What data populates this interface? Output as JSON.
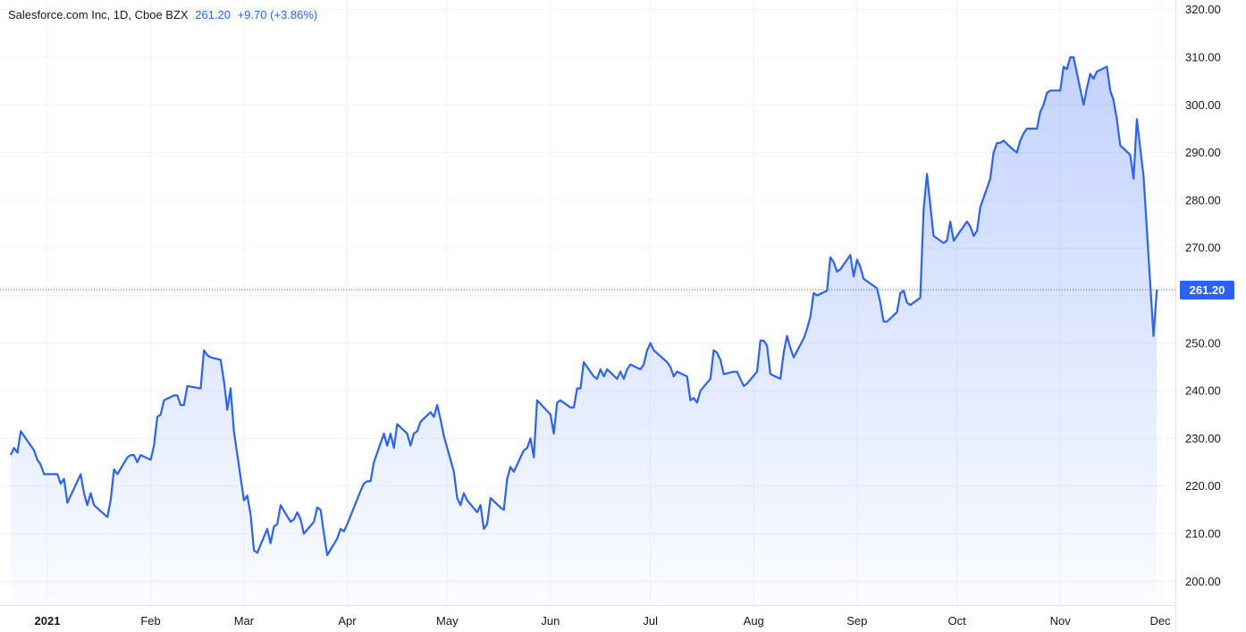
{
  "legend": {
    "symbol": "Salesforce.com Inc, 1D, Cboe BZX",
    "last": "261.20",
    "change": "+9.70 (+3.86%)"
  },
  "price_tag": "261.20",
  "colors": {
    "line": "#2962ff",
    "grid": "#f0f3fa",
    "text": "#131722"
  },
  "chart_data": {
    "type": "area",
    "ylim": [
      195,
      322
    ],
    "y_ticks": [
      "320.00",
      "310.00",
      "300.00",
      "290.00",
      "280.00",
      "270.00",
      "260.00",
      "250.00",
      "240.00",
      "230.00",
      "220.00",
      "210.00",
      "200.00"
    ],
    "x_tick_labels": [
      {
        "label": "2021",
        "date": "2021-01-01",
        "bold": true
      },
      {
        "label": "Feb",
        "date": "2021-02-01"
      },
      {
        "label": "Mar",
        "date": "2021-03-01"
      },
      {
        "label": "Apr",
        "date": "2021-04-01"
      },
      {
        "label": "May",
        "date": "2021-05-01"
      },
      {
        "label": "Jun",
        "date": "2021-06-01"
      },
      {
        "label": "Jul",
        "date": "2021-07-01"
      },
      {
        "label": "Aug",
        "date": "2021-08-01"
      },
      {
        "label": "Sep",
        "date": "2021-09-01"
      },
      {
        "label": "Oct",
        "date": "2021-10-01"
      },
      {
        "label": "Nov",
        "date": "2021-11-01"
      },
      {
        "label": "Dec",
        "date": "2021-12-01"
      }
    ],
    "last_price": 261.2,
    "series": [
      {
        "points": [
          [
            "2020-12-21",
            226.5
          ],
          [
            "2020-12-22",
            228
          ],
          [
            "2020-12-23",
            227
          ],
          [
            "2020-12-24",
            231.5
          ],
          [
            "2020-12-28",
            227.5
          ],
          [
            "2020-12-29",
            225.5
          ],
          [
            "2020-12-30",
            224.5
          ],
          [
            "2020-12-31",
            222.5
          ],
          [
            "2021-01-04",
            222.5
          ],
          [
            "2021-01-05",
            220.5
          ],
          [
            "2021-01-06",
            221.5
          ],
          [
            "2021-01-07",
            216.5
          ],
          [
            "2021-01-08",
            218
          ],
          [
            "2021-01-11",
            222.5
          ],
          [
            "2021-01-12",
            218.5
          ],
          [
            "2021-01-13",
            216
          ],
          [
            "2021-01-14",
            218.5
          ],
          [
            "2021-01-15",
            216
          ],
          [
            "2021-01-19",
            213.5
          ],
          [
            "2021-01-20",
            217
          ],
          [
            "2021-01-21",
            223.5
          ],
          [
            "2021-01-22",
            222.5
          ],
          [
            "2021-01-25",
            226
          ],
          [
            "2021-01-26",
            226.5
          ],
          [
            "2021-01-27",
            226.5
          ],
          [
            "2021-01-28",
            225
          ],
          [
            "2021-01-29",
            226.5
          ],
          [
            "2021-02-01",
            225.5
          ],
          [
            "2021-02-02",
            228.5
          ],
          [
            "2021-02-03",
            234.5
          ],
          [
            "2021-02-04",
            235
          ],
          [
            "2021-02-05",
            238
          ],
          [
            "2021-02-08",
            239
          ],
          [
            "2021-02-09",
            239
          ],
          [
            "2021-02-10",
            237
          ],
          [
            "2021-02-11",
            237
          ],
          [
            "2021-02-12",
            241
          ],
          [
            "2021-02-16",
            240.5
          ],
          [
            "2021-02-17",
            248.5
          ],
          [
            "2021-02-18",
            247.5
          ],
          [
            "2021-02-19",
            247
          ],
          [
            "2021-02-22",
            246.5
          ],
          [
            "2021-02-23",
            242
          ],
          [
            "2021-02-24",
            236
          ],
          [
            "2021-02-25",
            240.5
          ],
          [
            "2021-02-26",
            231.5
          ],
          [
            "2021-03-01",
            217
          ],
          [
            "2021-03-02",
            218
          ],
          [
            "2021-03-03",
            214
          ],
          [
            "2021-03-04",
            206.5
          ],
          [
            "2021-03-05",
            206
          ],
          [
            "2021-03-08",
            211
          ],
          [
            "2021-03-09",
            208
          ],
          [
            "2021-03-10",
            211.5
          ],
          [
            "2021-03-11",
            212
          ],
          [
            "2021-03-12",
            216
          ],
          [
            "2021-03-15",
            212.5
          ],
          [
            "2021-03-16",
            213
          ],
          [
            "2021-03-17",
            214.5
          ],
          [
            "2021-03-18",
            213
          ],
          [
            "2021-03-19",
            210
          ],
          [
            "2021-03-22",
            212.5
          ],
          [
            "2021-03-23",
            215.5
          ],
          [
            "2021-03-24",
            215
          ],
          [
            "2021-03-25",
            210
          ],
          [
            "2021-03-26",
            205.5
          ],
          [
            "2021-03-29",
            209
          ],
          [
            "2021-03-30",
            211
          ],
          [
            "2021-03-31",
            210.5
          ],
          [
            "2021-04-01",
            212
          ],
          [
            "2021-04-05",
            219
          ],
          [
            "2021-04-06",
            220.5
          ],
          [
            "2021-04-07",
            221
          ],
          [
            "2021-04-08",
            221
          ],
          [
            "2021-04-09",
            225
          ],
          [
            "2021-04-12",
            231
          ],
          [
            "2021-04-13",
            228.5
          ],
          [
            "2021-04-14",
            231
          ],
          [
            "2021-04-15",
            228
          ],
          [
            "2021-04-16",
            233
          ],
          [
            "2021-04-19",
            231
          ],
          [
            "2021-04-20",
            228.5
          ],
          [
            "2021-04-21",
            231
          ],
          [
            "2021-04-22",
            231.5
          ],
          [
            "2021-04-23",
            233.5
          ],
          [
            "2021-04-26",
            235.5
          ],
          [
            "2021-04-27",
            234.5
          ],
          [
            "2021-04-28",
            237
          ],
          [
            "2021-04-29",
            234
          ],
          [
            "2021-04-30",
            230.5
          ],
          [
            "2021-05-03",
            223
          ],
          [
            "2021-05-04",
            217.5
          ],
          [
            "2021-05-05",
            216
          ],
          [
            "2021-05-06",
            218.5
          ],
          [
            "2021-05-07",
            217
          ],
          [
            "2021-05-10",
            214.5
          ],
          [
            "2021-05-11",
            216
          ],
          [
            "2021-05-12",
            211
          ],
          [
            "2021-05-13",
            212
          ],
          [
            "2021-05-14",
            217.5
          ],
          [
            "2021-05-17",
            215.5
          ],
          [
            "2021-05-18",
            215
          ],
          [
            "2021-05-19",
            221.5
          ],
          [
            "2021-05-20",
            224
          ],
          [
            "2021-05-21",
            223
          ],
          [
            "2021-05-24",
            227.5
          ],
          [
            "2021-05-25",
            228
          ],
          [
            "2021-05-26",
            230
          ],
          [
            "2021-05-27",
            226
          ],
          [
            "2021-05-28",
            238
          ],
          [
            "2021-06-01",
            235
          ],
          [
            "2021-06-02",
            231
          ],
          [
            "2021-06-03",
            237.5
          ],
          [
            "2021-06-04",
            238
          ],
          [
            "2021-06-07",
            236.5
          ],
          [
            "2021-06-08",
            236.5
          ],
          [
            "2021-06-09",
            240.5
          ],
          [
            "2021-06-10",
            240.5
          ],
          [
            "2021-06-11",
            246
          ],
          [
            "2021-06-14",
            243
          ],
          [
            "2021-06-15",
            242.5
          ],
          [
            "2021-06-16",
            244.5
          ],
          [
            "2021-06-17",
            243
          ],
          [
            "2021-06-18",
            244.5
          ],
          [
            "2021-06-21",
            242.5
          ],
          [
            "2021-06-22",
            244
          ],
          [
            "2021-06-23",
            242.5
          ],
          [
            "2021-06-24",
            244.5
          ],
          [
            "2021-06-25",
            245.5
          ],
          [
            "2021-06-28",
            244.5
          ],
          [
            "2021-06-29",
            245.5
          ],
          [
            "2021-06-30",
            248.5
          ],
          [
            "2021-07-01",
            250
          ],
          [
            "2021-07-02",
            248.5
          ],
          [
            "2021-07-06",
            246
          ],
          [
            "2021-07-07",
            245
          ],
          [
            "2021-07-08",
            243
          ],
          [
            "2021-07-09",
            244
          ],
          [
            "2021-07-12",
            243
          ],
          [
            "2021-07-13",
            238
          ],
          [
            "2021-07-14",
            238.5
          ],
          [
            "2021-07-15",
            237.5
          ],
          [
            "2021-07-16",
            240
          ],
          [
            "2021-07-19",
            242.5
          ],
          [
            "2021-07-20",
            248.5
          ],
          [
            "2021-07-21",
            248
          ],
          [
            "2021-07-22",
            246.5
          ],
          [
            "2021-07-23",
            243.5
          ],
          [
            "2021-07-26",
            244
          ],
          [
            "2021-07-27",
            244
          ],
          [
            "2021-07-28",
            242.5
          ],
          [
            "2021-07-29",
            241
          ],
          [
            "2021-07-30",
            241.5
          ],
          [
            "2021-08-02",
            244
          ],
          [
            "2021-08-03",
            250.5
          ],
          [
            "2021-08-04",
            250.5
          ],
          [
            "2021-08-05",
            249.5
          ],
          [
            "2021-08-06",
            243.5
          ],
          [
            "2021-08-09",
            242.5
          ],
          [
            "2021-08-10",
            248
          ],
          [
            "2021-08-11",
            251.5
          ],
          [
            "2021-08-12",
            249
          ],
          [
            "2021-08-13",
            247
          ],
          [
            "2021-08-16",
            251
          ],
          [
            "2021-08-17",
            253
          ],
          [
            "2021-08-18",
            255.5
          ],
          [
            "2021-08-19",
            260.5
          ],
          [
            "2021-08-20",
            260
          ],
          [
            "2021-08-23",
            261
          ],
          [
            "2021-08-24",
            268
          ],
          [
            "2021-08-25",
            267
          ],
          [
            "2021-08-26",
            265
          ],
          [
            "2021-08-27",
            265.5
          ],
          [
            "2021-08-30",
            268.5
          ],
          [
            "2021-08-31",
            264
          ],
          [
            "2021-09-01",
            267.5
          ],
          [
            "2021-09-02",
            266
          ],
          [
            "2021-09-03",
            263.5
          ],
          [
            "2021-09-07",
            261.5
          ],
          [
            "2021-09-08",
            258.5
          ],
          [
            "2021-09-09",
            254.5
          ],
          [
            "2021-09-10",
            254.5
          ],
          [
            "2021-09-13",
            256.5
          ],
          [
            "2021-09-14",
            260.5
          ],
          [
            "2021-09-15",
            261
          ],
          [
            "2021-09-16",
            258.5
          ],
          [
            "2021-09-17",
            258
          ],
          [
            "2021-09-20",
            259.5
          ],
          [
            "2021-09-21",
            278
          ],
          [
            "2021-09-22",
            285.5
          ],
          [
            "2021-09-23",
            279
          ],
          [
            "2021-09-24",
            272.5
          ],
          [
            "2021-09-27",
            271
          ],
          [
            "2021-09-28",
            271.5
          ],
          [
            "2021-09-29",
            275.5
          ],
          [
            "2021-09-30",
            271.5
          ],
          [
            "2021-10-01",
            272.5
          ],
          [
            "2021-10-04",
            275.5
          ],
          [
            "2021-10-05",
            274.5
          ],
          [
            "2021-10-06",
            272.5
          ],
          [
            "2021-10-07",
            273.5
          ],
          [
            "2021-10-08",
            278.5
          ],
          [
            "2021-10-11",
            284.5
          ],
          [
            "2021-10-12",
            290
          ],
          [
            "2021-10-13",
            292
          ],
          [
            "2021-10-14",
            292
          ],
          [
            "2021-10-15",
            292.5
          ],
          [
            "2021-10-18",
            290.5
          ],
          [
            "2021-10-19",
            290
          ],
          [
            "2021-10-20",
            292.5
          ],
          [
            "2021-10-21",
            294
          ],
          [
            "2021-10-22",
            295
          ],
          [
            "2021-10-25",
            295
          ],
          [
            "2021-10-26",
            298.5
          ],
          [
            "2021-10-27",
            300
          ],
          [
            "2021-10-28",
            302.5
          ],
          [
            "2021-10-29",
            303
          ],
          [
            "2021-11-01",
            303
          ],
          [
            "2021-11-02",
            308
          ],
          [
            "2021-11-03",
            307.5
          ],
          [
            "2021-11-04",
            310
          ],
          [
            "2021-11-05",
            310
          ],
          [
            "2021-11-08",
            300
          ],
          [
            "2021-11-09",
            303.5
          ],
          [
            "2021-11-10",
            306.5
          ],
          [
            "2021-11-11",
            305.5
          ],
          [
            "2021-11-12",
            307
          ],
          [
            "2021-11-15",
            308
          ],
          [
            "2021-11-16",
            303
          ],
          [
            "2021-11-17",
            301
          ],
          [
            "2021-11-18",
            297
          ],
          [
            "2021-11-19",
            291.5
          ],
          [
            "2021-11-22",
            289.5
          ],
          [
            "2021-11-23",
            284.5
          ],
          [
            "2021-11-24",
            297
          ],
          [
            "2021-11-26",
            285
          ],
          [
            "2021-11-29",
            251.5
          ],
          [
            "2021-11-30",
            261.2
          ]
        ]
      }
    ]
  }
}
